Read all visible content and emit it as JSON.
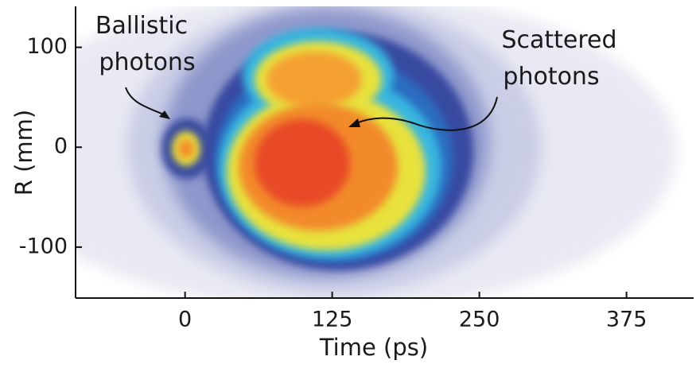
{
  "chart_data": {
    "type": "heatmap",
    "xlabel": "Time (ps)",
    "ylabel": "R (mm)",
    "xlim": [
      -93,
      432
    ],
    "ylim": [
      -151,
      141
    ],
    "xticks": [
      0,
      125,
      250,
      375
    ],
    "yticks": [
      -100,
      0,
      100
    ],
    "annotations": [
      {
        "lines": [
          "Ballistic",
          "photons"
        ]
      },
      {
        "lines": [
          "Scattered",
          "photons"
        ]
      }
    ]
  }
}
